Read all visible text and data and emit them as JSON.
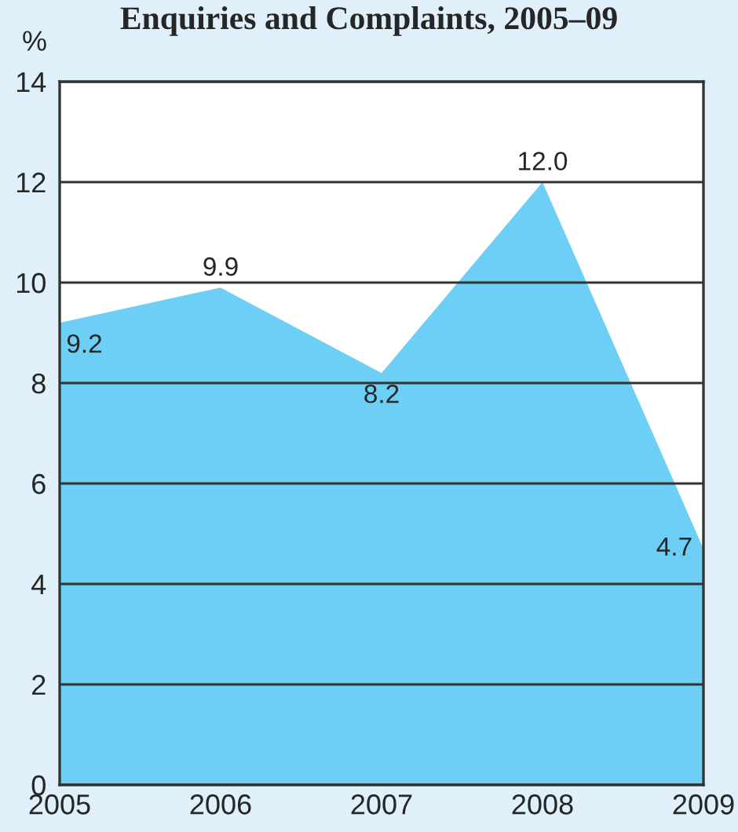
{
  "chart_data": {
    "type": "area",
    "title": "Enquiries and Complaints, 2005–09",
    "ylabel": "%",
    "x": [
      2005,
      2006,
      2007,
      2008,
      2009
    ],
    "series": [
      {
        "color": "#6dcff6",
        "values": [
          9.2,
          9.9,
          8.2,
          12.0,
          4.7
        ]
      }
    ],
    "xlim": [
      2005,
      2009
    ],
    "xticks": [
      2005,
      2006,
      2007,
      2008,
      2009
    ],
    "ylim": [
      0,
      14
    ],
    "yticks": [
      0,
      2,
      4,
      6,
      8,
      10,
      12,
      14
    ],
    "value_labels": [
      "9.2",
      "9.9",
      "8.2",
      "12.0",
      "4.7"
    ],
    "grid": "y"
  }
}
